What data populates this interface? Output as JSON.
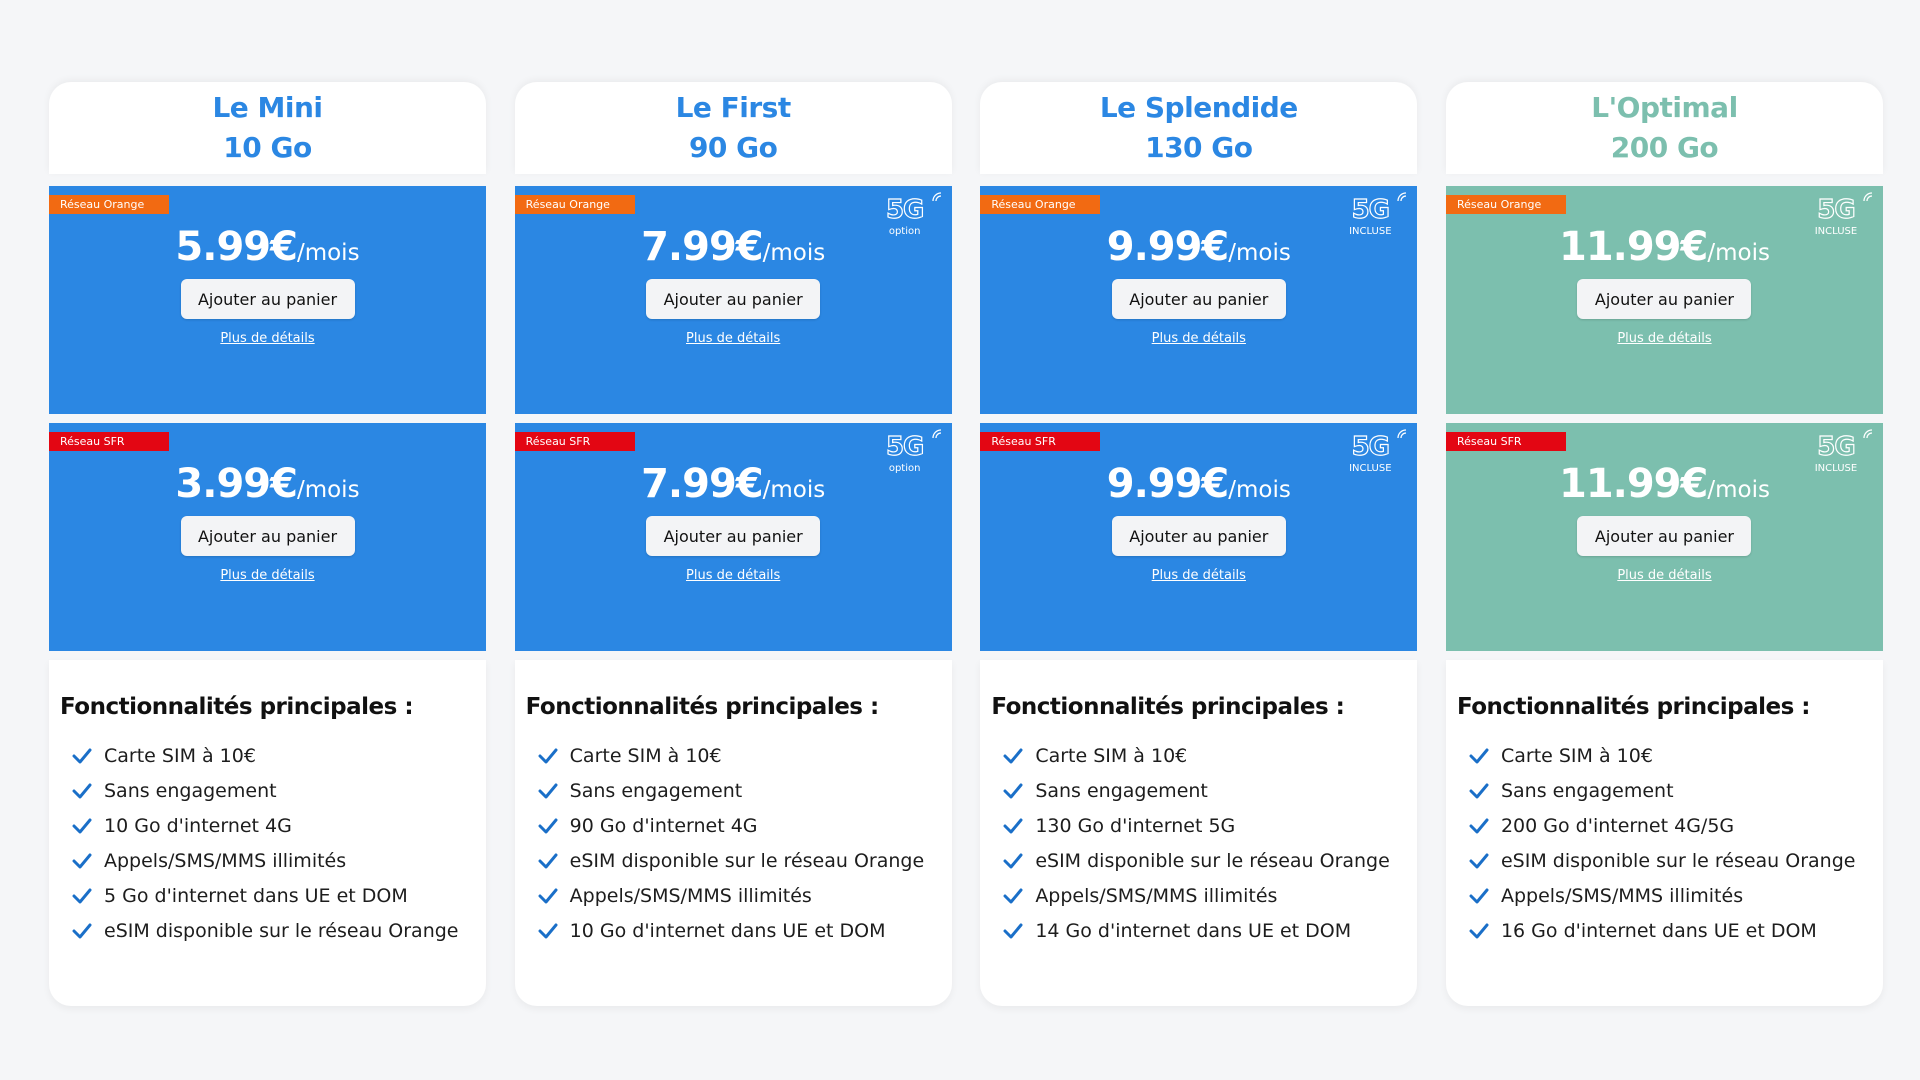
{
  "plans": [
    {
      "name": "Le Mini",
      "data": "10 Go",
      "theme": "blue",
      "offers": [
        {
          "network": "Réseau Orange",
          "price": "5.99€",
          "per": "/mois",
          "g5": null
        },
        {
          "network": "Réseau SFR",
          "price": "3.99€",
          "per": "/mois",
          "g5": null
        }
      ],
      "features": [
        "Carte SIM à 10€",
        "Sans engagement",
        "10 Go d'internet 4G",
        "Appels/SMS/MMS illimités",
        "5 Go d'internet dans UE et DOM",
        "eSIM disponible sur le réseau Orange"
      ]
    },
    {
      "name": "Le First",
      "data": "90 Go",
      "theme": "blue",
      "offers": [
        {
          "network": "Réseau Orange",
          "price": "7.99€",
          "per": "/mois",
          "g5": "option"
        },
        {
          "network": "Réseau SFR",
          "price": "7.99€",
          "per": "/mois",
          "g5": "option"
        }
      ],
      "features": [
        "Carte SIM à 10€",
        "Sans engagement",
        "90 Go d'internet 4G",
        "eSIM disponible sur le réseau Orange",
        "Appels/SMS/MMS illimités",
        "10 Go d'internet dans UE et DOM"
      ]
    },
    {
      "name": "Le Splendide",
      "data": "130 Go",
      "theme": "blue",
      "offers": [
        {
          "network": "Réseau Orange",
          "price": "9.99€",
          "per": "/mois",
          "g5": "INCLUSE"
        },
        {
          "network": "Réseau SFR",
          "price": "9.99€",
          "per": "/mois",
          "g5": "INCLUSE"
        }
      ],
      "features": [
        "Carte SIM à 10€",
        "Sans engagement",
        "130 Go d'internet 5G",
        "eSIM disponible sur le réseau Orange",
        "Appels/SMS/MMS illimités",
        "14 Go d'internet dans UE et DOM"
      ]
    },
    {
      "name": "L'Optimal",
      "data": "200 Go",
      "theme": "teal",
      "offers": [
        {
          "network": "Réseau Orange",
          "price": "11.99€",
          "per": "/mois",
          "g5": "INCLUSE"
        },
        {
          "network": "Réseau SFR",
          "price": "11.99€",
          "per": "/mois",
          "g5": "INCLUSE"
        }
      ],
      "features": [
        "Carte SIM à 10€",
        "Sans engagement",
        "200 Go d'internet 4G/5G",
        "eSIM disponible sur le réseau Orange",
        "Appels/SMS/MMS illimités",
        "16 Go d'internet dans UE et DOM"
      ]
    }
  ],
  "labels": {
    "cart": "Ajouter au panier",
    "details": "Plus de détails",
    "features_title": "Fonctionnalités principales :",
    "g5_logo": "5G"
  },
  "colors": {
    "blue": "#2b87e3",
    "teal": "#7cbfae",
    "orange_badge": "#f26a12",
    "sfr_badge": "#e30613",
    "check": "#1a6fc8"
  }
}
